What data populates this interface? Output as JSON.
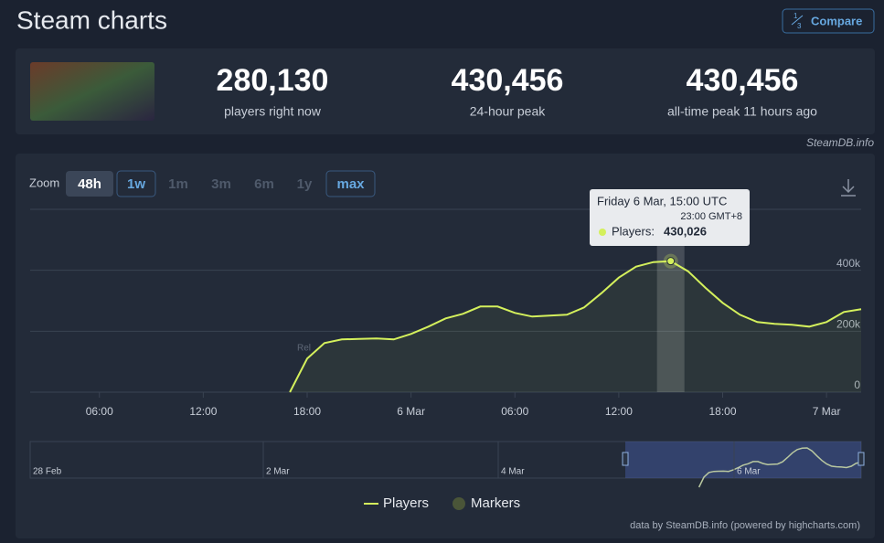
{
  "header": {
    "title": "Steam charts",
    "compare": "Compare"
  },
  "stats": [
    {
      "value": "280,130",
      "label": "players right now"
    },
    {
      "value": "430,456",
      "label": "24-hour peak"
    },
    {
      "value": "430,456",
      "label": "all-time peak 11 hours ago"
    }
  ],
  "credit": "SteamDB.info",
  "zoom": {
    "label": "Zoom",
    "buttons": [
      "48h",
      "1w",
      "1m",
      "3m",
      "6m",
      "1y",
      "max"
    ]
  },
  "chart_data": {
    "type": "line",
    "x": [
      17,
      18,
      19,
      20,
      21,
      22,
      23,
      24,
      25,
      26,
      27,
      28,
      29,
      30,
      31,
      32,
      33,
      34,
      35,
      36,
      37,
      38,
      39,
      40,
      41,
      42,
      43,
      44,
      45,
      46,
      47,
      48,
      49,
      50
    ],
    "series": [
      {
        "name": "Players",
        "color": "#d4f05c",
        "values": [
          0,
          110000,
          161000,
          173000,
          175000,
          176000,
          173000,
          191000,
          215000,
          242000,
          257000,
          281000,
          281000,
          260000,
          248000,
          251000,
          254000,
          278000,
          325000,
          376000,
          412000,
          427000,
          430026,
          397000,
          343000,
          293000,
          254000,
          230000,
          224000,
          221000,
          215000,
          230000,
          263000,
          272000
        ]
      }
    ],
    "markers": {
      "name": "Markers",
      "color": "#4a5538"
    },
    "annotation": "Rel",
    "xlim": [
      2,
      50
    ],
    "xticks": [
      {
        "value": 6,
        "label": "06:00"
      },
      {
        "value": 12,
        "label": "12:00"
      },
      {
        "value": 18,
        "label": "18:00"
      },
      {
        "value": 24,
        "label": "6 Mar"
      },
      {
        "value": 30,
        "label": "06:00"
      },
      {
        "value": 36,
        "label": "12:00"
      },
      {
        "value": 42,
        "label": "18:00"
      },
      {
        "value": 48,
        "label": "7 Mar"
      }
    ],
    "ylim": [
      0,
      600000
    ],
    "yticks": [
      {
        "value": 0,
        "label": "0"
      },
      {
        "value": 200000,
        "label": "200k"
      },
      {
        "value": 400000,
        "label": "400k"
      }
    ],
    "grid": true,
    "tooltip": {
      "title": "Friday 6 Mar, 15:00 UTC",
      "subtitle": "23:00 GMT+8",
      "series_label": "Players:",
      "x": 39,
      "value": 430026,
      "value_label": "430,026"
    },
    "navigator_labels": [
      "28 Feb",
      "2 Mar",
      "4 Mar",
      "6 Mar"
    ],
    "footer": "data by SteamDB.info (powered by highcharts.com)"
  }
}
